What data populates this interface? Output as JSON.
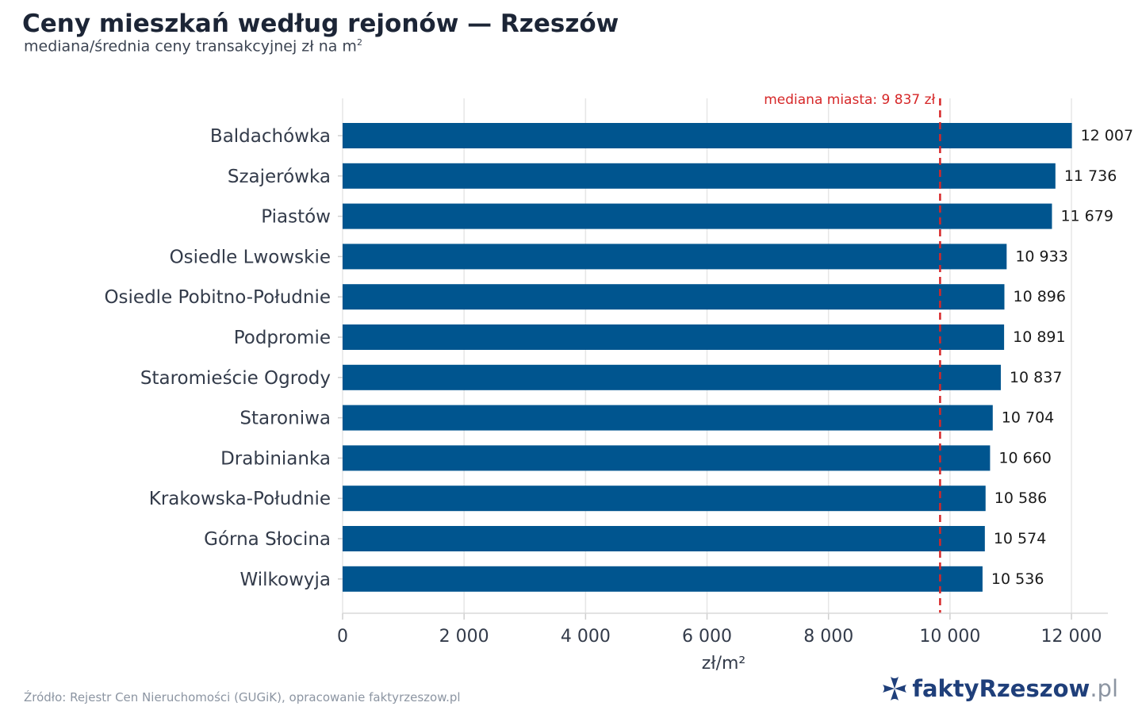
{
  "header": {
    "title": "Ceny mieszkań według rejonów — Rzeszów",
    "subtitle": "mediana/średnia ceny transakcyjnej zł na m",
    "subtitle_sup": "2"
  },
  "chart_data": {
    "type": "bar",
    "orientation": "horizontal",
    "categories": [
      "Baldachówka",
      "Szajerówka",
      "Piastów",
      "Osiedle Lwowskie",
      "Osiedle Pobitno-Południe",
      "Podpromie",
      "Staromieście Ogrody",
      "Staroniwa",
      "Drabinianka",
      "Krakowska-Południe",
      "Górna Słocina",
      "Wilkowyja"
    ],
    "values": [
      12007,
      11736,
      11679,
      10933,
      10896,
      10891,
      10837,
      10704,
      10660,
      10586,
      10574,
      10536
    ],
    "value_labels": [
      "12 007",
      "11 736",
      "11 679",
      "10 933",
      "10 896",
      "10 891",
      "10 837",
      "10 704",
      "10 660",
      "10 586",
      "10 574",
      "10 536"
    ],
    "xlabel": "zł/m²",
    "xlim": [
      0,
      12600
    ],
    "xticks": [
      0,
      2000,
      4000,
      6000,
      8000,
      10000,
      12000
    ],
    "xtick_labels": [
      "0",
      "2 000",
      "4 000",
      "6 000",
      "8 000",
      "10 000",
      "12 000"
    ],
    "grid": "vertical",
    "bar_color": "#00558f",
    "reference_line": {
      "value": 9837,
      "label": "mediana miasta: 9 837 zł",
      "color": "#d62728",
      "style": "dashed"
    }
  },
  "footer": {
    "source": "Źródło: Rejestr Cen Nieruchomości (GUGiK), opracowanie faktyrzeszow.pl",
    "brand_main": "faktyRzeszow",
    "brand_tld": ".pl",
    "brand_color": "#1f3f7a"
  }
}
